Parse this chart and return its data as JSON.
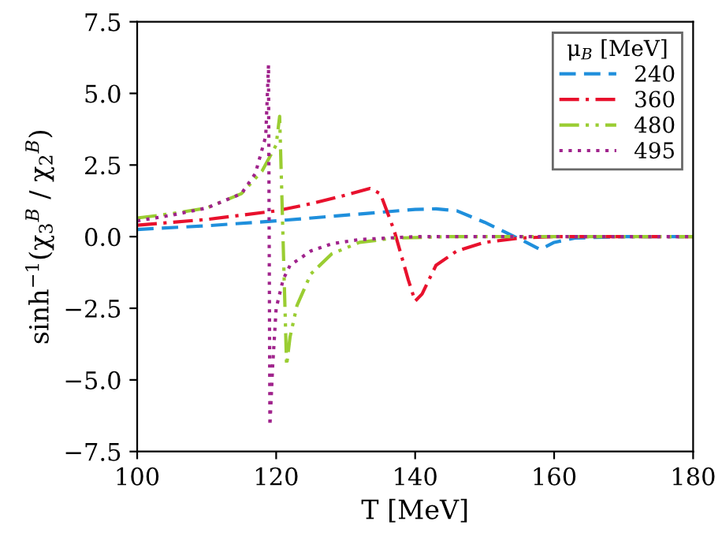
{
  "chart_data": {
    "type": "line",
    "xlabel": "T [MeV]",
    "ylabel": "sinh$^{−1}$(χ$_{3}$$^{B}$ / χ$_{2}$$^{B}$)",
    "legend_title": "μ$_{B}$ [MeV]",
    "legend": "top right",
    "grid": false,
    "marker": "none",
    "xlim": [
      100,
      180
    ],
    "xticks": [
      100,
      120,
      140,
      160,
      180
    ],
    "ylim": [
      -7.5,
      7.5
    ],
    "yticks": [
      {
        "value": -7.5,
        "label": "−7.5"
      },
      {
        "value": -5.0,
        "label": "−5.0"
      },
      {
        "value": -2.5,
        "label": "−2.5"
      },
      {
        "value": 0.0,
        "label": "0.0"
      },
      {
        "value": 2.5,
        "label": "2.5"
      },
      {
        "value": 5.0,
        "label": "5.0"
      },
      {
        "value": 7.5,
        "label": "7.5"
      }
    ],
    "series": [
      {
        "name": "240",
        "color": "#1f8fdc",
        "line_style": "dashed",
        "x": [
          100,
          110,
          120,
          130,
          140,
          143,
          146,
          150,
          153,
          156,
          158,
          160,
          163,
          170,
          180
        ],
        "values": [
          0.25,
          0.38,
          0.55,
          0.75,
          0.95,
          0.97,
          0.9,
          0.5,
          0.15,
          -0.2,
          -0.45,
          -0.2,
          -0.05,
          0.0,
          0.0
        ]
      },
      {
        "name": "360",
        "color": "#e8112d",
        "line_style": "dashdot",
        "x": [
          100,
          110,
          120,
          125,
          130,
          133.5,
          135,
          137,
          139,
          140,
          141,
          143,
          146,
          150,
          155,
          160,
          180
        ],
        "values": [
          0.4,
          0.6,
          0.9,
          1.15,
          1.45,
          1.68,
          1.5,
          0.2,
          -1.5,
          -2.25,
          -2.0,
          -1.0,
          -0.5,
          -0.2,
          -0.05,
          0.0,
          0.0
        ]
      },
      {
        "name": "480",
        "color": "#9acd32",
        "line_style": "dashdotdot",
        "x": [
          100,
          105,
          110,
          115,
          118,
          120,
          120.5,
          121.5,
          122,
          123,
          125,
          128,
          132,
          137,
          145,
          180
        ],
        "values": [
          0.65,
          0.8,
          1.0,
          1.5,
          2.3,
          3.2,
          4.2,
          -4.5,
          -3.5,
          -2.4,
          -1.3,
          -0.6,
          -0.2,
          -0.05,
          0.0,
          0.0
        ]
      },
      {
        "name": "495",
        "color": "#a0238c",
        "line_style": "dotted",
        "x": [
          100,
          105,
          110,
          115,
          117,
          118.5,
          118.9,
          119.1,
          119.5,
          120,
          121,
          122,
          125,
          128,
          132,
          140,
          180
        ],
        "values": [
          0.55,
          0.75,
          1.0,
          1.5,
          2.2,
          3.5,
          6.0,
          -6.6,
          -4.5,
          -2.5,
          -1.5,
          -1.0,
          -0.5,
          -0.25,
          -0.1,
          0.0,
          0.0
        ]
      }
    ]
  }
}
